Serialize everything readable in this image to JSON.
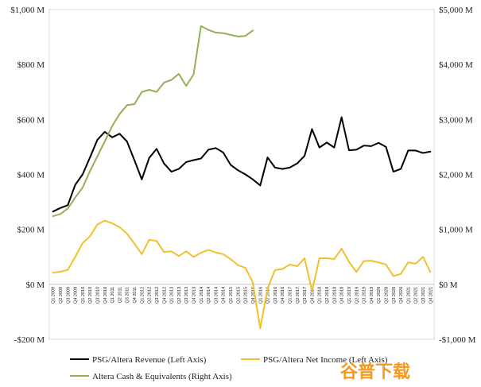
{
  "chart_data": {
    "type": "line",
    "title": "",
    "xlabel": "",
    "y_left": {
      "ylim": [
        -200,
        1000
      ],
      "ticks": [
        {
          "value": 1000,
          "label": "$1,000 M"
        },
        {
          "value": 800,
          "label": "$800 M"
        },
        {
          "value": 600,
          "label": "$600 M"
        },
        {
          "value": 400,
          "label": "$400 M"
        },
        {
          "value": 200,
          "label": "$200 M"
        },
        {
          "value": 0,
          "label": "$0 M"
        },
        {
          "value": -200,
          "label": "-$200 M"
        }
      ]
    },
    "y_right": {
      "ylim": [
        -1000,
        5000
      ],
      "ticks": [
        {
          "value": 5000,
          "label": "$5,000 M"
        },
        {
          "value": 4000,
          "label": "$4,000 M"
        },
        {
          "value": 3000,
          "label": "$3,000 M"
        },
        {
          "value": 2000,
          "label": "$2,000 M"
        },
        {
          "value": 1000,
          "label": "$1,000 M"
        },
        {
          "value": 0,
          "label": "$0 M"
        },
        {
          "value": -1000,
          "label": "-$1,000 M"
        }
      ]
    },
    "grid": false,
    "legend_position": "bottom",
    "categories": [
      "Q1 2009",
      "Q2 2009",
      "Q3 2009",
      "Q4 2009",
      "Q1 2010",
      "Q2 2010",
      "Q3 2010",
      "Q4 2010",
      "Q1 2011",
      "Q2 2011",
      "Q3 2011",
      "Q4 2011",
      "Q1 2012",
      "Q2 2012",
      "Q3 2012",
      "Q4 2012",
      "Q1 2013",
      "Q2 2013",
      "Q3 2013",
      "Q4 2013",
      "Q1 2014",
      "Q2 2014",
      "Q3 2014",
      "Q4 2014",
      "Q1 2015",
      "Q2 2015",
      "Q3 2015",
      "Q4 2015",
      "Q1 2016",
      "Q2 2016",
      "Q3 2016",
      "Q4 2016",
      "Q1 2017",
      "Q2 2017",
      "Q3 2017",
      "Q4 2017",
      "Q1 2018",
      "Q2 2018",
      "Q3 2018",
      "Q4 2018",
      "Q1 2019",
      "Q2 2019",
      "Q3 2019",
      "Q4 2019",
      "Q1 2020",
      "Q2 2020",
      "Q3 2020",
      "Q4 2020",
      "Q1 2021",
      "Q2 2021",
      "Q3 2021",
      "Q4 2021"
    ],
    "series": [
      {
        "name": "PSG/Altera Revenue (Left Axis)",
        "axis": "left",
        "color": "#000000",
        "values": [
          265,
          278,
          288,
          362,
          400,
          462,
          526,
          555,
          535,
          548,
          520,
          452,
          382,
          460,
          493,
          440,
          410,
          420,
          445,
          452,
          458,
          490,
          496,
          480,
          435,
          415,
          400,
          382,
          360,
          462,
          425,
          420,
          425,
          440,
          468,
          565,
          498,
          516,
          498,
          608,
          488,
          490,
          505,
          503,
          515,
          500,
          410,
          420,
          487,
          487,
          478,
          483
        ]
      },
      {
        "name": "PSG/Altera Net Income (Left Axis)",
        "axis": "left",
        "color": "#f2c02e",
        "values": [
          42,
          46,
          53,
          100,
          150,
          175,
          218,
          232,
          222,
          208,
          185,
          148,
          110,
          162,
          158,
          118,
          120,
          103,
          120,
          100,
          115,
          125,
          116,
          110,
          92,
          70,
          60,
          8,
          -160,
          -15,
          52,
          56,
          72,
          66,
          95,
          -25,
          95,
          95,
          92,
          130,
          82,
          45,
          85,
          86,
          80,
          72,
          30,
          38,
          80,
          75,
          100,
          45
        ]
      },
      {
        "name": "Altera Cash & Equivalents (Right Axis)",
        "axis": "right",
        "color": "#92b055",
        "values": [
          1240,
          1280,
          1380,
          1580,
          1760,
          2060,
          2330,
          2600,
          2880,
          3100,
          3260,
          3280,
          3500,
          3540,
          3500,
          3670,
          3720,
          3830,
          3610,
          3820,
          4700,
          4630,
          4580,
          4570,
          4540,
          4510,
          4520,
          4620,
          null,
          null,
          null,
          null,
          null,
          null,
          null,
          null,
          null,
          null,
          null,
          null,
          null,
          null,
          null,
          null,
          null,
          null,
          null,
          null,
          null,
          null,
          null,
          null
        ]
      }
    ]
  },
  "watermark": "谷普下载"
}
